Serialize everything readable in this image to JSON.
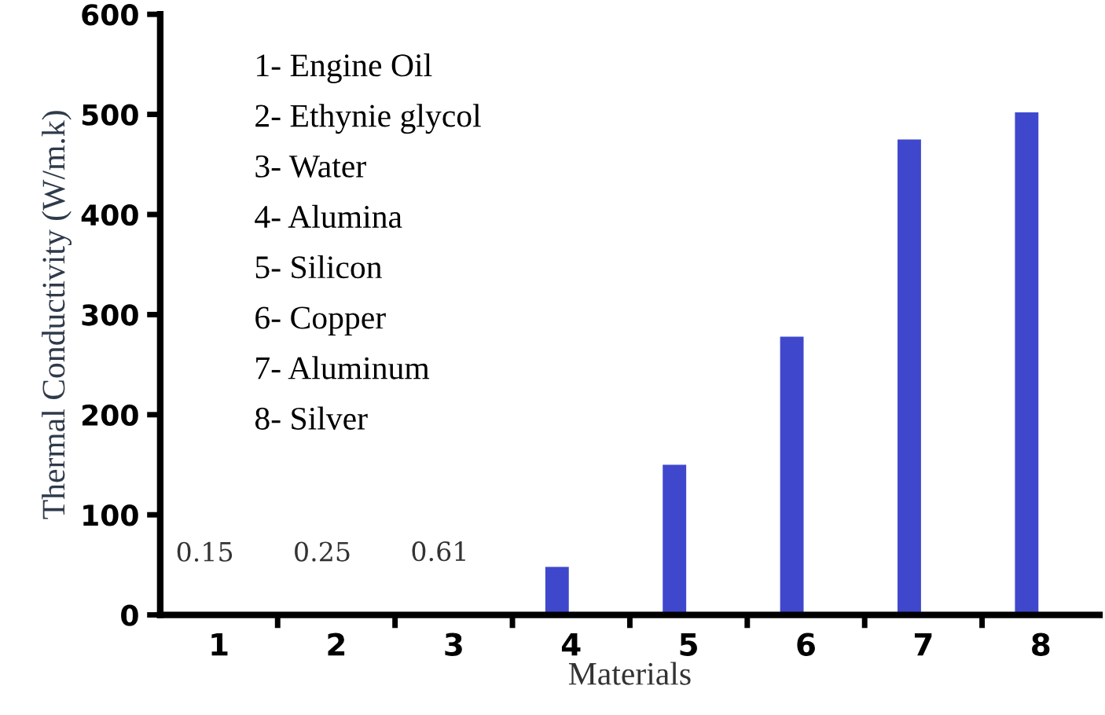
{
  "chart_data": {
    "type": "bar",
    "xlabel": "Materials",
    "ylabel": "Thermal Conductivity (W/m.k)",
    "categories": [
      "1",
      "2",
      "3",
      "4",
      "5",
      "6",
      "7",
      "8"
    ],
    "values": [
      0.15,
      0.25,
      0.61,
      48,
      150,
      278,
      475,
      502
    ],
    "value_labels": [
      "0.15",
      "0.25",
      "0.61",
      null,
      null,
      null,
      null,
      null
    ],
    "color": "#3f48cc",
    "ylim": [
      0,
      600
    ],
    "yticks": [
      0,
      100,
      200,
      300,
      400,
      500,
      600
    ],
    "grid": false,
    "annotations": [
      "1- Engine Oil",
      "2- Ethynie glycol",
      "3- Water",
      "4- Alumina",
      "5- Silicon",
      "6- Copper",
      "7- Aluminum",
      "8- Silver"
    ]
  }
}
